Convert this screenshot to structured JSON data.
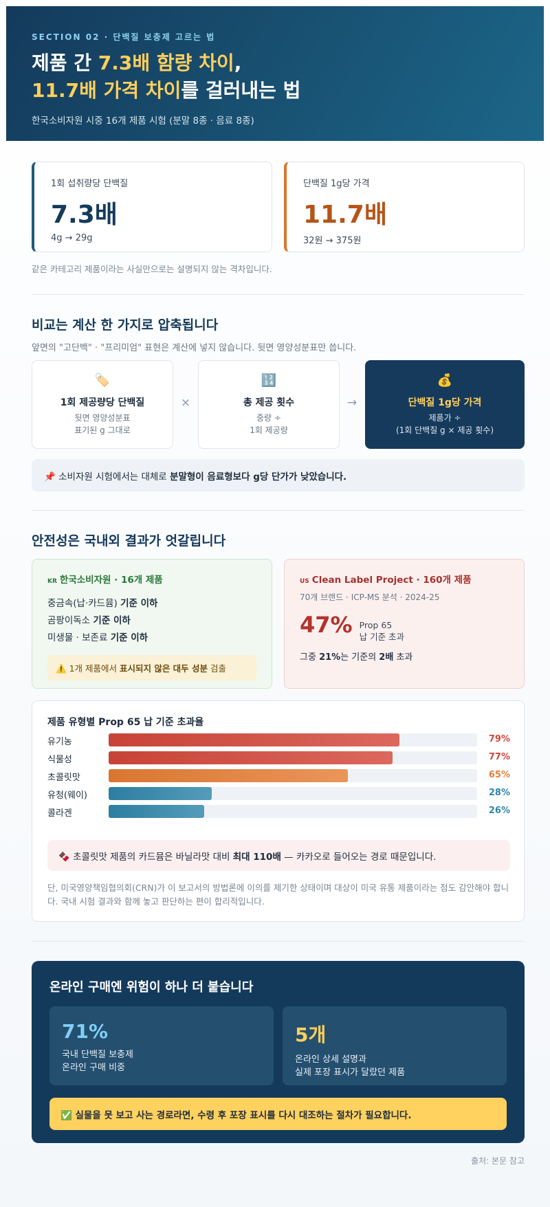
{
  "header": {
    "section": "SECTION 02 · 단백질 보충제 고르는 법",
    "title_line1": [
      "제품 간 ",
      "7.3배 함량 차이",
      ","
    ],
    "title_line2": [
      "11.7배 가격 차이",
      "를 걸러내는 법"
    ],
    "subtitle": "한국소비자원 시중 16개 제품 시험 (분말 8종 · 음료 8종)"
  },
  "stats": [
    {
      "label": "1회 섭취량당 단백질",
      "value": "7.3배",
      "range": "4g → 29g"
    },
    {
      "label": "단백질 1g당 가격",
      "value": "11.7배",
      "range": "32원 → 375원"
    }
  ],
  "stats_note": "같은 카테고리 제품이라는 사실만으로는 설명되지 않는 격차입니다.",
  "formula": {
    "heading": "비교는 계산 한 가지로 압축됩니다",
    "intro": "앞면의 \"고단백\" · \"프리미엄\" 표현은 계산에 넣지 않습니다. 뒷면 영양성분표만 씁니다.",
    "steps": [
      {
        "icon": "🏷️",
        "title": "1회 제공량당 단백질",
        "desc": [
          "뒷면 영양성분표",
          "표기된 g 그대로"
        ]
      },
      {
        "icon": "🔢",
        "title": "총 제공 횟수",
        "desc": [
          "중량 ÷",
          "1회 제공량"
        ]
      },
      {
        "icon": "💰",
        "title": "단백질 1g당 가격",
        "desc": [
          "제품가 ÷",
          "(1회 단백질 g × 제공 횟수)"
        ]
      }
    ],
    "operators": [
      "×",
      "→"
    ],
    "tip": [
      "📌",
      "소비자원 시험에서는 대체로 ",
      "분말형이 음료형보다 g당 단가가 낮았습니다."
    ]
  },
  "safety": {
    "heading": "안전성은 국내외 결과가 엇갈립니다",
    "kr": {
      "flag": "KR",
      "title": "한국소비자원 · 16개 제품",
      "items": [
        [
          "중금속(납·카드뮴) ",
          "기준 이하"
        ],
        [
          "곰팡이독소 ",
          "기준 이하"
        ],
        [
          "미생물 · 보존료 ",
          "기준 이하"
        ]
      ],
      "warning": [
        "⚠️",
        "1개 제품에서 ",
        "표시되지 않은 대두 성분",
        " 검출"
      ]
    },
    "us": {
      "flag": "US",
      "title": "Clean Label Project · 160개 제품",
      "meta": "70개 브랜드 · ICP-MS 분석 · 2024-25",
      "big": "47%",
      "big_desc": [
        "Prop 65",
        "납 기준 초과"
      ],
      "note": [
        "그중 ",
        "21%",
        "는 기준의 ",
        "2배",
        " 초과"
      ]
    }
  },
  "bar_chart": {
    "type": "bar",
    "title": "제품 유형별 Prop 65 납 기준 초과율",
    "categories": [
      "유기농",
      "식물성",
      "초콜릿맛",
      "유청(웨이)",
      "콜라겐"
    ],
    "values": [
      79,
      77,
      65,
      28,
      26
    ],
    "value_labels": [
      "79%",
      "77%",
      "65%",
      "28%",
      "26%"
    ],
    "colors": [
      "#d4473a",
      "#d4473a",
      "#e67e34",
      "#2f86ab",
      "#2f86ab"
    ],
    "xlim": [
      0,
      100
    ],
    "callout": [
      "🍫",
      "초콜릿맛 제품의 카드뮴은 바닐라맛 대비 ",
      "최대 110배",
      " — 카카오로 들어오는 경로 때문입니다."
    ],
    "caveat": "단, 미국영양책임협의회(CRN)가 이 보고서의 방법론에 이의를 제기한 상태이며 대상이 미국 유통 제품이라는 점도 감안해야 합니다. 국내 시험 결과와 함께 놓고 판단하는 편이 합리적입니다."
  },
  "online": {
    "heading": "온라인 구매엔 위험이 하나 더 붙습니다",
    "stats": [
      {
        "value": "71%",
        "desc": [
          "국내 단백질 보충제",
          "온라인 구매 비중"
        ]
      },
      {
        "value": "5개",
        "desc": [
          "온라인 상세 설명과",
          "실제 포장 표시가 달랐던 제품"
        ]
      }
    ],
    "check": [
      "✅",
      "실물을 못 보고 사는 경로라면, 수령 후 포장 표시를 다시 대조하는 절차가 필요합니다."
    ]
  },
  "footer": "출처: 본문 참고"
}
